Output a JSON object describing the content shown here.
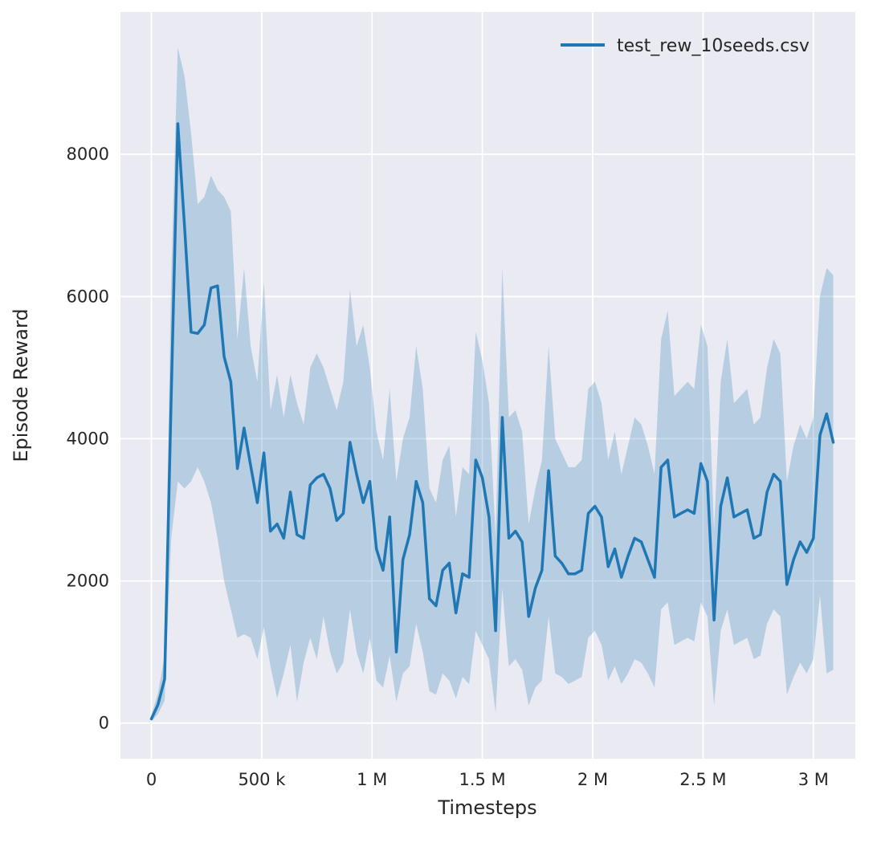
{
  "chart_data": {
    "type": "line",
    "title": "",
    "xlabel": "Timesteps",
    "ylabel": "Episode Reward",
    "grid": true,
    "legend_position": "upper right",
    "background": "#eaeaf2",
    "grid_color": "#ffffff",
    "text_color": "#262626",
    "line_color": "#1f77b4",
    "band_color": "#1f77b4",
    "band_opacity": 0.25,
    "xlim": [
      -140000,
      3190000
    ],
    "ylim": [
      -500,
      10000
    ],
    "x_ticks": [
      {
        "value": 0,
        "label": "0"
      },
      {
        "value": 500000,
        "label": "500 k"
      },
      {
        "value": 1000000,
        "label": "1 M"
      },
      {
        "value": 1500000,
        "label": "1.5 M"
      },
      {
        "value": 2000000,
        "label": "2 M"
      },
      {
        "value": 2500000,
        "label": "2.5 M"
      },
      {
        "value": 3000000,
        "label": "3 M"
      }
    ],
    "y_ticks": [
      {
        "value": 0,
        "label": "0"
      },
      {
        "value": 2000,
        "label": "2000"
      },
      {
        "value": 4000,
        "label": "4000"
      },
      {
        "value": 6000,
        "label": "6000"
      },
      {
        "value": 8000,
        "label": "8000"
      }
    ],
    "x_start": 0,
    "x_step": 30000,
    "series": [
      {
        "name": "test_rew_10seeds.csv",
        "mean": [
          60,
          260,
          620,
          4600,
          8430,
          7000,
          5500,
          5480,
          5600,
          6120,
          6150,
          5150,
          4800,
          3580,
          4150,
          3620,
          3100,
          3800,
          2700,
          2800,
          2600,
          3250,
          2650,
          2600,
          3350,
          3450,
          3500,
          3300,
          2850,
          2950,
          3950,
          3500,
          3100,
          3400,
          2450,
          2150,
          2900,
          1000,
          2300,
          2650,
          3400,
          3100,
          1750,
          1650,
          2150,
          2250,
          1550,
          2100,
          2050,
          3700,
          3450,
          2900,
          1300,
          4300,
          2600,
          2700,
          2550,
          1500,
          1900,
          2150,
          3550,
          2350,
          2250,
          2100,
          2100,
          2150,
          2950,
          3050,
          2900,
          2200,
          2450,
          2050,
          2350,
          2600,
          2550,
          2300,
          2050,
          3600,
          3700,
          2900,
          2950,
          3000,
          2950,
          3650,
          3400,
          1450,
          3050,
          3450,
          2900,
          2950,
          3000,
          2600,
          2650,
          3250,
          3500,
          3400,
          1950,
          2300,
          2550,
          2400,
          2600,
          4050,
          4350,
          3950
        ],
        "upper": [
          120,
          420,
          950,
          6300,
          9500,
          9100,
          8300,
          7300,
          7400,
          7700,
          7500,
          7400,
          7200,
          5400,
          6400,
          5300,
          4800,
          6200,
          4400,
          4900,
          4300,
          4900,
          4500,
          4200,
          5000,
          5200,
          5000,
          4700,
          4400,
          4800,
          6100,
          5300,
          5600,
          5000,
          4100,
          3700,
          4700,
          3400,
          4000,
          4300,
          5300,
          4700,
          3300,
          3100,
          3700,
          3900,
          2900,
          3600,
          3500,
          5500,
          5100,
          4500,
          2600,
          6400,
          4300,
          4400,
          4100,
          2800,
          3300,
          3700,
          5300,
          4000,
          3800,
          3600,
          3600,
          3700,
          4700,
          4800,
          4500,
          3700,
          4100,
          3500,
          3900,
          4300,
          4200,
          3900,
          3500,
          5400,
          5800,
          4600,
          4700,
          4800,
          4700,
          5600,
          5300,
          2700,
          4800,
          5400,
          4500,
          4600,
          4700,
          4200,
          4300,
          5000,
          5400,
          5200,
          3400,
          3900,
          4200,
          4000,
          4300,
          6000,
          6400,
          6300
        ],
        "lower": [
          20,
          130,
          320,
          2600,
          3400,
          3300,
          3400,
          3600,
          3400,
          3100,
          2600,
          2000,
          1600,
          1200,
          1250,
          1200,
          900,
          1350,
          800,
          350,
          700,
          1100,
          300,
          850,
          1200,
          900,
          1500,
          1000,
          700,
          850,
          1600,
          1000,
          700,
          1200,
          600,
          500,
          950,
          300,
          700,
          800,
          1400,
          1000,
          450,
          400,
          700,
          600,
          350,
          650,
          550,
          1300,
          1100,
          900,
          150,
          1900,
          800,
          900,
          750,
          250,
          500,
          600,
          1500,
          700,
          650,
          550,
          600,
          650,
          1200,
          1300,
          1100,
          600,
          800,
          550,
          700,
          900,
          850,
          700,
          500,
          1600,
          1700,
          1100,
          1150,
          1200,
          1150,
          1700,
          1500,
          250,
          1300,
          1600,
          1100,
          1150,
          1200,
          900,
          950,
          1400,
          1600,
          1500,
          400,
          650,
          850,
          700,
          900,
          1800,
          700,
          750
        ]
      }
    ]
  }
}
